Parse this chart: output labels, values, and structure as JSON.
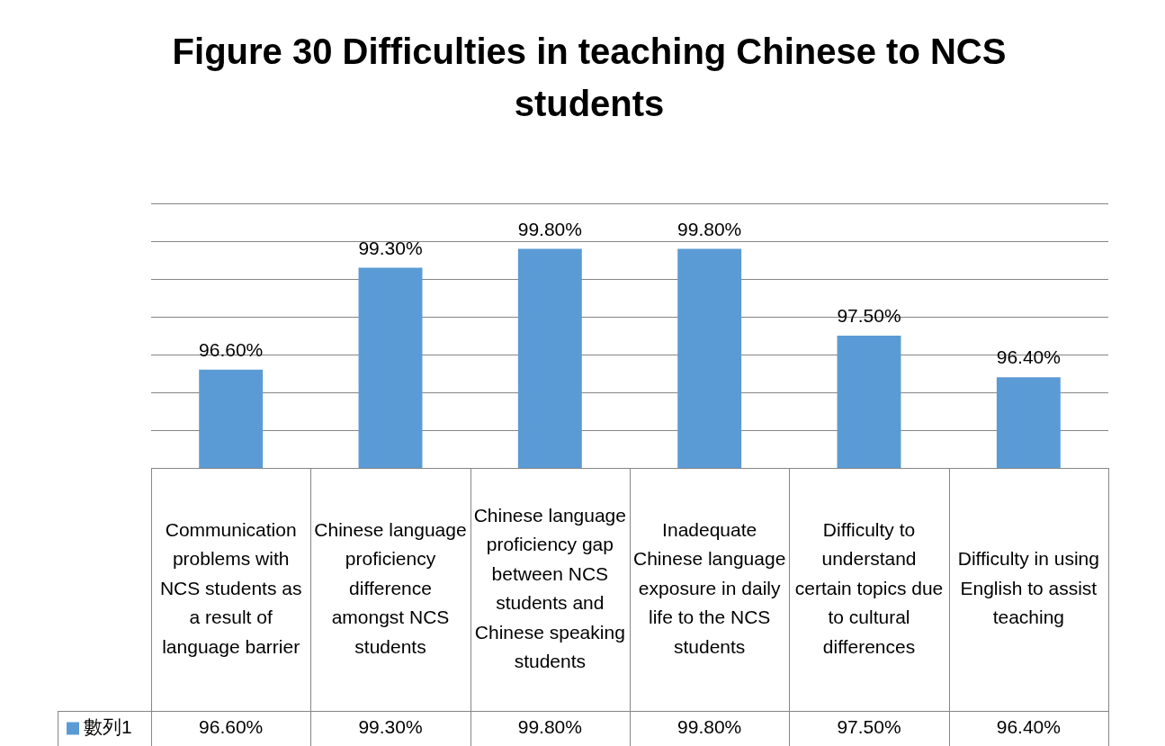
{
  "chart_data": {
    "type": "bar",
    "title": "Figure 30 Difficulties in teaching Chinese to NCS students",
    "categories": [
      "Communication problems with NCS students as a result of language barrier",
      "Chinese language proficiency difference amongst NCS students",
      "Chinese language proficiency gap between NCS students and Chinese speaking students",
      "Inadequate Chinese language exposure in daily life to the NCS students",
      "Difficulty to understand certain topics due to cultural differences",
      "Difficulty in using English to assist teaching"
    ],
    "series": [
      {
        "name": "數列1",
        "color": "#5b9bd5",
        "values": [
          96.6,
          99.3,
          99.8,
          99.8,
          97.5,
          96.4
        ],
        "value_labels": [
          "96.60%",
          "99.30%",
          "99.80%",
          "99.80%",
          "97.50%",
          "96.40%"
        ]
      }
    ],
    "ylim": [
      94,
      101
    ],
    "yticks": [
      {
        "value": 94,
        "label": null
      },
      {
        "value": 95,
        "label": null
      },
      {
        "value": 96,
        "label": null
      },
      {
        "value": 97,
        "label": null
      },
      {
        "value": 98,
        "label": null
      },
      {
        "value": 99,
        "label": null
      },
      {
        "value": 100,
        "label": null
      },
      {
        "value": 101,
        "label": null
      }
    ],
    "tick_labels": "x",
    "grid": "y",
    "legend": "bottom left"
  }
}
